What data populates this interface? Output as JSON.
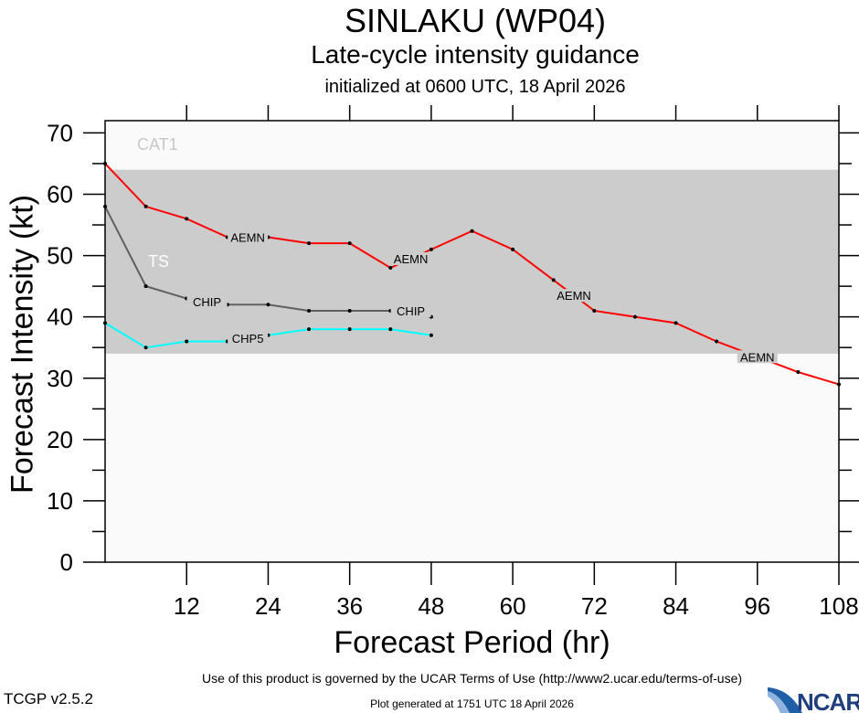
{
  "chart_data": {
    "type": "line",
    "title": "SINLAKU (WP04)",
    "subtitle": "Late-cycle intensity guidance",
    "subtitle2": "initialized at 0600 UTC, 18 April 2026",
    "xlabel": "Forecast Period (hr)",
    "ylabel": "Forecast Intensity (kt)",
    "xlim": [
      0,
      108
    ],
    "ylim": [
      0,
      72
    ],
    "xticks": [
      12,
      24,
      36,
      48,
      60,
      72,
      84,
      96,
      108
    ],
    "yticks": [
      0,
      10,
      20,
      30,
      40,
      50,
      60,
      70
    ],
    "grid": false,
    "bands": [
      {
        "label": "CAT1",
        "from": 64,
        "to": 72,
        "color": "#fafafa",
        "label_color": "#c8c8c8"
      },
      {
        "label": "TS",
        "from": 34,
        "to": 64,
        "color": "#cccccc",
        "label_color": "#ffffff"
      }
    ],
    "series": [
      {
        "name": "AEMN",
        "color": "#ff0000",
        "x": [
          0,
          6,
          12,
          18,
          24,
          30,
          36,
          42,
          48,
          54,
          60,
          66,
          72,
          78,
          84,
          90,
          96,
          102,
          108
        ],
        "values": [
          65,
          58,
          56,
          53,
          53,
          52,
          52,
          48,
          51,
          54,
          51,
          46,
          41,
          40,
          39,
          36,
          33.5,
          31,
          29
        ]
      },
      {
        "name": "CHIP",
        "color": "#606060",
        "x": [
          0,
          6,
          12,
          18,
          24,
          30,
          36,
          42,
          48
        ],
        "values": [
          58,
          45,
          43,
          42,
          42,
          41,
          41,
          41,
          40
        ]
      },
      {
        "name": "CHP5",
        "color": "#00ffff",
        "x": [
          0,
          6,
          12,
          18,
          24,
          30,
          36,
          42,
          48
        ],
        "values": [
          39,
          35,
          36,
          36,
          37,
          38,
          38,
          38,
          37
        ]
      }
    ]
  },
  "footer": {
    "terms": "Use of this product is governed by the UCAR Terms of Use (http://www2.ucar.edu/terms-of-use)",
    "version": "TCGP v2.5.2",
    "generated": "Plot generated at 1751 UTC   18 April 2026",
    "logo": "NCAR"
  }
}
